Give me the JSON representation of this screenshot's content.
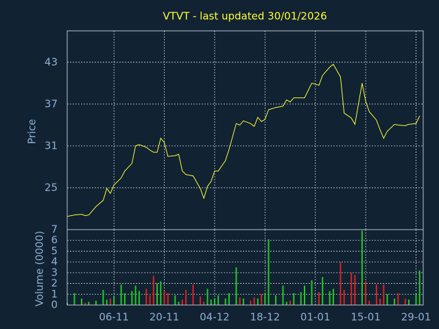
{
  "chart_data": [
    {
      "type": "line",
      "title": "VTVT - last updated 30/01/2026",
      "ylabel": "Price",
      "x": [
        "24-10",
        "26-10",
        "28-10",
        "29-10",
        "30-10",
        "01-11",
        "03-11",
        "04-11",
        "05-11",
        "06-11",
        "08-11",
        "09-11",
        "11-11",
        "12-11",
        "13-11",
        "15-11",
        "16-11",
        "17-11",
        "18-11",
        "19-11",
        "20-11",
        "21-11",
        "23-11",
        "24-11",
        "25-11",
        "26-11",
        "28-11",
        "30-11",
        "01-12",
        "02-12",
        "03-12",
        "04-12",
        "05-12",
        "07-12",
        "08-12",
        "10-12",
        "11-12",
        "12-12",
        "14-12",
        "15-12",
        "16-12",
        "17-12",
        "18-12",
        "19-12",
        "21-12",
        "23-12",
        "24-12",
        "25-12",
        "26-12",
        "28-12",
        "29-12",
        "31-12",
        "02-01",
        "03-01",
        "05-01",
        "06-01",
        "08-01",
        "09-01",
        "11-01",
        "12-01",
        "14-01",
        "15-01",
        "16-01",
        "18-01",
        "19-01",
        "20-01",
        "21-01",
        "23-01",
        "24-01",
        "26-01",
        "27-01",
        "29-01",
        "30-01"
      ],
      "values": [
        20.9,
        21.1,
        21.2,
        21.0,
        21.1,
        22.3,
        23.2,
        24.9,
        24.2,
        25.4,
        26.4,
        27.4,
        28.5,
        31.0,
        31.2,
        30.8,
        30.4,
        30.1,
        30.1,
        32.1,
        31.5,
        29.5,
        29.6,
        29.8,
        27.4,
        26.9,
        26.7,
        24.9,
        23.5,
        25.2,
        25.9,
        27.4,
        27.4,
        28.9,
        30.5,
        34.2,
        34.0,
        34.6,
        34.2,
        33.8,
        35.1,
        34.5,
        34.8,
        36.2,
        36.5,
        36.7,
        37.6,
        37.3,
        37.9,
        37.9,
        37.9,
        40.0,
        39.7,
        41.1,
        42.3,
        42.7,
        40.9,
        35.7,
        35.0,
        34.1,
        40.0,
        37.4,
        35.9,
        34.7,
        33.3,
        32.1,
        33.1,
        34.1,
        34.0,
        33.9,
        34.1,
        34.2,
        35.3
      ],
      "color": "#ffff33",
      "xlim": [
        "24-10",
        "31-01"
      ],
      "ylim": [
        19,
        47.5
      ],
      "yticks": [
        25,
        31,
        37,
        43
      ],
      "grid": true
    },
    {
      "type": "bar",
      "ylabel": "Volume (0000)",
      "x": [
        "24-10",
        "26-10",
        "28-10",
        "29-10",
        "30-10",
        "01-11",
        "03-11",
        "04-11",
        "05-11",
        "06-11",
        "08-11",
        "09-11",
        "11-11",
        "12-11",
        "13-11",
        "15-11",
        "16-11",
        "17-11",
        "18-11",
        "19-11",
        "20-11",
        "21-11",
        "23-11",
        "24-11",
        "25-11",
        "26-11",
        "28-11",
        "30-11",
        "01-12",
        "02-12",
        "03-12",
        "04-12",
        "05-12",
        "07-12",
        "08-12",
        "10-12",
        "11-12",
        "12-12",
        "14-12",
        "15-12",
        "16-12",
        "17-12",
        "18-12",
        "19-12",
        "21-12",
        "23-12",
        "24-12",
        "25-12",
        "26-12",
        "28-12",
        "29-12",
        "31-12",
        "02-01",
        "03-01",
        "05-01",
        "06-01",
        "08-01",
        "09-01",
        "11-01",
        "12-01",
        "14-01",
        "15-01",
        "16-01",
        "18-01",
        "19-01",
        "20-01",
        "21-01",
        "23-01",
        "24-01",
        "26-01",
        "27-01",
        "29-01",
        "30-01"
      ],
      "values": [
        0.2,
        1.1,
        0.6,
        0.2,
        0.3,
        0.4,
        1.4,
        0.5,
        0.6,
        0.8,
        1.9,
        1.1,
        1.3,
        1.8,
        1.3,
        1.5,
        0.9,
        2.7,
        2.0,
        2.2,
        1.3,
        1.1,
        0.9,
        0.3,
        0.5,
        1.4,
        1.9,
        0.8,
        0.3,
        1.5,
        0.5,
        0.6,
        0.9,
        0.6,
        1.1,
        3.5,
        0.7,
        0.6,
        0.4,
        0.7,
        0.6,
        1.0,
        1.1,
        6.1,
        0.9,
        1.8,
        0.3,
        0.4,
        1.1,
        1.2,
        1.8,
        2.3,
        1.2,
        2.6,
        1.3,
        1.5,
        4.0,
        1.4,
        3.0,
        2.8,
        6.9,
        2.2,
        0.4,
        1.9,
        0.6,
        1.9,
        1.0,
        0.6,
        1.1,
        0.6,
        0.5,
        1.0,
        3.2
      ],
      "up_color": "#22cc22",
      "down_color": "#dd2222",
      "xlim": [
        "24-10",
        "31-01"
      ],
      "ylim": [
        0,
        7
      ],
      "yticks": [
        0,
        1,
        2,
        3,
        4,
        5,
        6,
        7
      ],
      "xticks": [
        "06-11",
        "20-11",
        "04-12",
        "18-12",
        "01-01",
        "15-01",
        "29-01"
      ],
      "grid": true
    }
  ]
}
